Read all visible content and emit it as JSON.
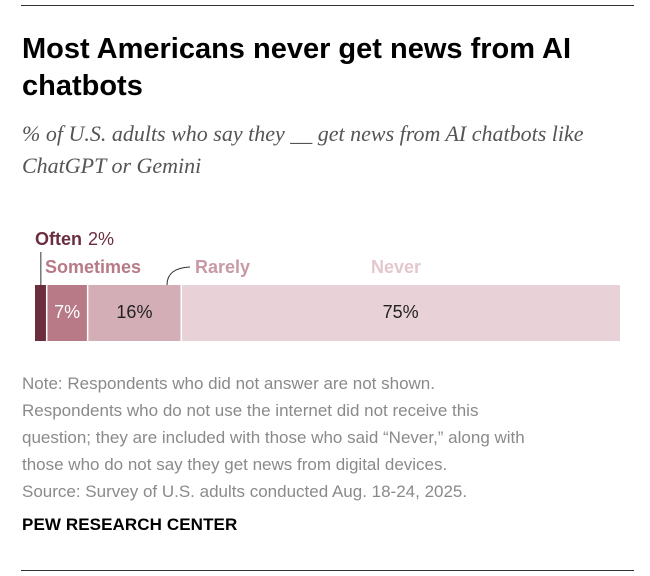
{
  "title": "Most Americans never get news from AI chatbots",
  "subtitle": "% of U.S. adults who say they __ get news from AI chatbots like ChatGPT or Gemini",
  "chart_data": {
    "type": "bar",
    "orientation": "horizontal-stacked",
    "title": "Most Americans never get news from AI chatbots",
    "subtitle": "% of U.S. adults who say they __ get news from AI chatbots like ChatGPT or Gemini",
    "xlim": [
      0,
      100
    ],
    "segments": [
      {
        "name": "Often",
        "value": 2,
        "label": "",
        "color": "#6b2e3f",
        "text_color": "#6b2e3f",
        "value_text_color": "#ffffff"
      },
      {
        "name": "Sometimes",
        "value": 7,
        "label": "7%",
        "color": "#b77a86",
        "text_color": "#b77a86",
        "value_text_color": "#ffffff"
      },
      {
        "name": "Rarely",
        "value": 16,
        "label": "16%",
        "color": "#d3aeb7",
        "text_color": "#c79aa5",
        "value_text_color": "#222222"
      },
      {
        "name": "Never",
        "value": 75,
        "label": "75%",
        "color": "#e8d2d7",
        "text_color": "#e2c8ce",
        "value_text_color": "#222222"
      }
    ],
    "often_value_label": "2%"
  },
  "notes": [
    "Note: Respondents who did not answer are not shown.",
    "Respondents who do not use the internet did not receive this",
    "question; they are included with those who said “Never,” along with",
    "those who do not say they get news from digital devices.",
    "Source: Survey of U.S. adults conducted Aug. 18-24, 2025."
  ],
  "brand": "PEW RESEARCH CENTER"
}
